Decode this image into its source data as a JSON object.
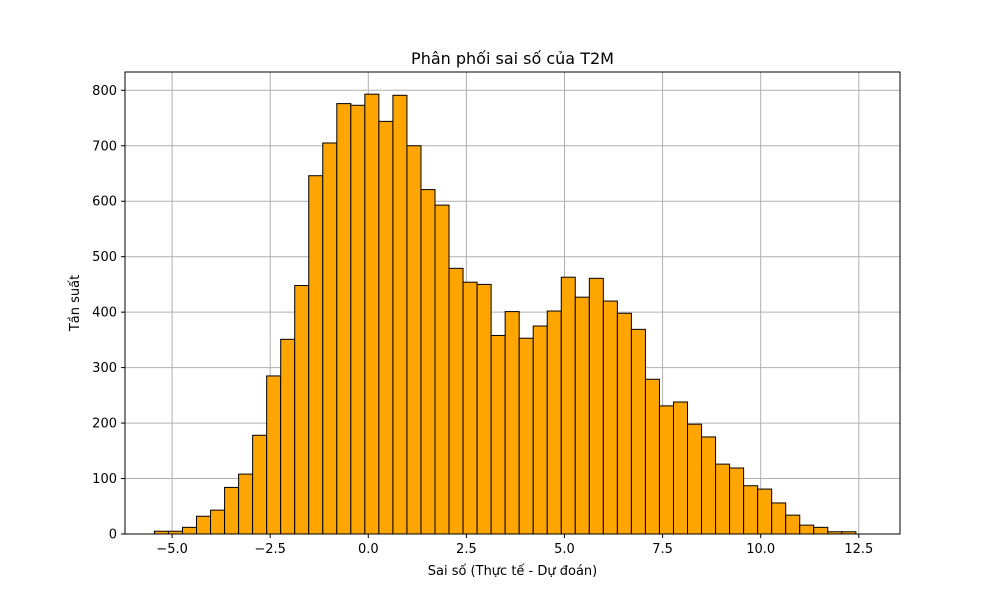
{
  "chart_data": {
    "type": "bar",
    "title": "Phân phối sai số của T2M",
    "xlabel": "Sai số (Thực tế - Dự đoán)",
    "ylabel": "Tần suất",
    "xlim": [
      -6.2,
      13.55
    ],
    "ylim": [
      0,
      833
    ],
    "xticks": [
      -5.0,
      -2.5,
      0.0,
      2.5,
      5.0,
      7.5,
      10.0,
      12.5
    ],
    "xtick_labels": [
      "−5.0",
      "−2.5",
      "0.0",
      "2.5",
      "5.0",
      "7.5",
      "10.0",
      "12.5"
    ],
    "yticks": [
      0,
      100,
      200,
      300,
      400,
      500,
      600,
      700,
      800
    ],
    "ytick_labels": [
      "0",
      "100",
      "200",
      "300",
      "400",
      "500",
      "600",
      "700",
      "800"
    ],
    "grid": true,
    "bin_start": -5.45,
    "bin_width": 0.3575,
    "values": [
      5,
      5,
      12,
      32,
      43,
      84,
      108,
      178,
      285,
      351,
      448,
      646,
      705,
      776,
      773,
      793,
      744,
      791,
      700,
      621,
      593,
      479,
      454,
      450,
      358,
      401,
      353,
      375,
      402,
      463,
      427,
      461,
      420,
      398,
      369,
      279,
      231,
      238,
      198,
      175,
      126,
      119,
      87,
      81,
      56,
      34,
      16,
      12,
      4,
      4
    ],
    "colors": {
      "bar_fill": "#ffa500",
      "bar_edge": "#000000",
      "grid": "#b0b0b0",
      "axes": "#000000"
    }
  }
}
